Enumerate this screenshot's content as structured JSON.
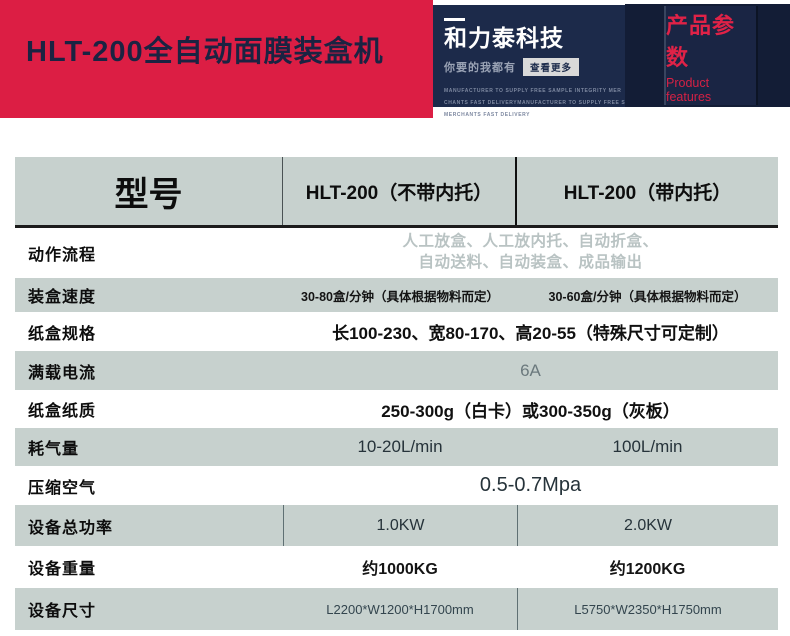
{
  "banner": {
    "title": "HLT-200全自动面膜装盒机",
    "brand": {
      "name": "和力泰科技",
      "tagline": "你要的我都有",
      "more_button": "查看更多",
      "fineprint": [
        "MANUFACTURER TO SUPPLY FREE SAMPLE INTEGRITY MER",
        "CHANTS FAST DELIVERYMANUFACTURER TO SUPPLY FREE SAMPLE INTEGRIT",
        "MERCHANTS FAST DELIVERY"
      ]
    },
    "badge": {
      "title": "产品参数",
      "subtitle": "Product features"
    }
  },
  "colors": {
    "banner_red": "#dc1e44",
    "navy": "#1c2a4a",
    "dark_navy": "#131d36",
    "badge_red": "#e02247",
    "table_gray": "#c7d1ce",
    "title_navy": "#1b2342"
  },
  "table": {
    "header": {
      "model_label": "型号",
      "col_no_tray": "HLT-200（不带内托）",
      "col_with_tray": "HLT-200（带内托）"
    },
    "rows": [
      {
        "label": "动作流程",
        "line1": "人工放盒、人工放内托、自动折盒、",
        "line2": "自动送料、自动装盒、成品输出"
      },
      {
        "label": "装盒速度",
        "value1": "30-80盒/分钟（具体根据物料而定）",
        "value2": "30-60盒/分钟（具体根据物料而定）"
      },
      {
        "label": "纸盒规格",
        "value": "长100-230、宽80-170、高20-55（特殊尺寸可定制）"
      },
      {
        "label": "满载电流",
        "value": "6A"
      },
      {
        "label": "纸盒纸质",
        "value": "250-300g（白卡）或300-350g（灰板）"
      },
      {
        "label": "耗气量",
        "value1": "10-20L/min",
        "value2": "100L/min"
      },
      {
        "label": "压缩空气",
        "value": "0.5-0.7Mpa"
      },
      {
        "label": "设备总功率",
        "value1": "1.0KW",
        "value2": "2.0KW"
      },
      {
        "label": "设备重量",
        "value1": "约1000KG",
        "value2": "约1200KG"
      },
      {
        "label": "设备尺寸",
        "value1": "L2200*W1200*H1700mm",
        "value2": "L5750*W2350*H1750mm"
      }
    ]
  }
}
